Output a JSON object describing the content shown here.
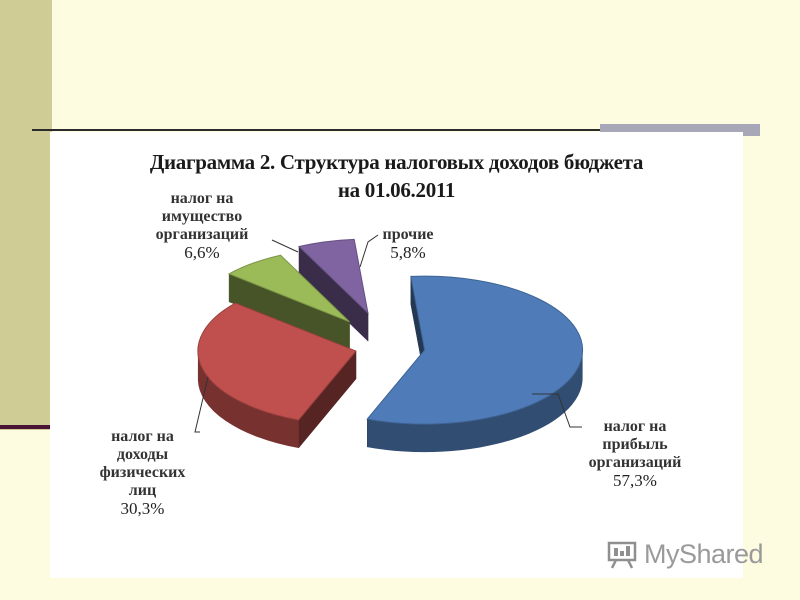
{
  "chart_data": {
    "type": "pie",
    "title_lines": [
      "Диаграмма 2. Структура налоговых доходов бюджета",
      "на 01.06.2011"
    ],
    "slices": [
      {
        "label_lines": [
          "налог на",
          "прибыль",
          "организаций"
        ],
        "value": 57.3,
        "value_text": "57,3%",
        "color": "#4f7cb8"
      },
      {
        "label_lines": [
          "налог на",
          "доходы",
          "физических",
          "лиц"
        ],
        "value": 30.3,
        "value_text": "30,3%",
        "color": "#c0504d"
      },
      {
        "label_lines": [
          "налог на",
          "имущество",
          "организаций"
        ],
        "value": 6.6,
        "value_text": "6,6%",
        "color": "#9bbb59"
      },
      {
        "label_lines": [
          "прочие"
        ],
        "value": 5.8,
        "value_text": "5,8%",
        "color": "#8064a2"
      }
    ]
  },
  "watermark": {
    "text": "MyShared",
    "icon": "presentation-board-icon"
  }
}
